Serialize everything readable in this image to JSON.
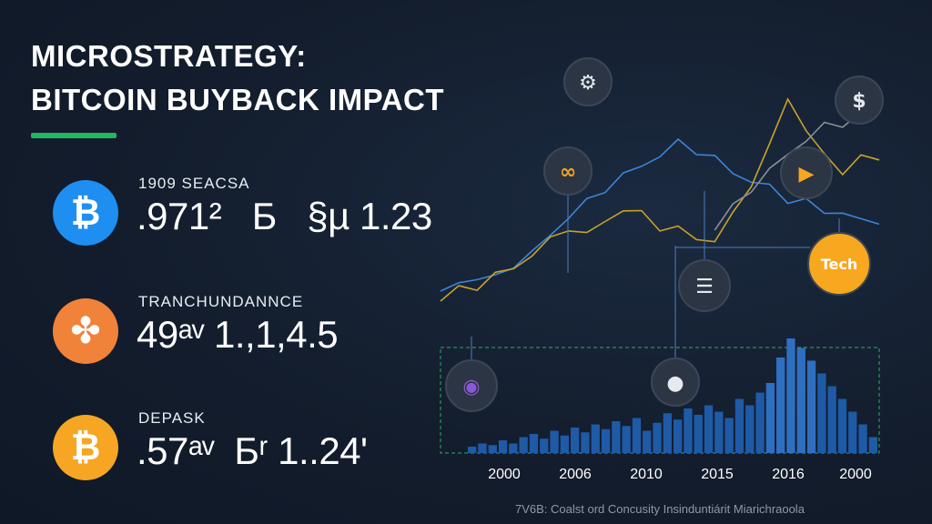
{
  "title": {
    "line1": "MICROSTRATEGY:",
    "line2": "BITCOIN BUYBACK IMPACT"
  },
  "accent_color": "#1fb860",
  "stats": [
    {
      "icon": "bitcoin-icon",
      "icon_glyph": "₿",
      "color": "#1f8ef1",
      "label": "1909 SEACSA",
      "value": ".971²   Б   §µ 1.23"
    },
    {
      "icon": "puzzle-icon",
      "icon_glyph": "✤",
      "color": "#f1823a",
      "label": "TRANCHUNDANNCE",
      "value": "49ᵃᵛ 1.,1,4.5"
    },
    {
      "icon": "bitcoin-icon",
      "icon_glyph": "₿",
      "color": "#f6a623",
      "label": "DEPASK",
      "value": ".57ᵃᵛ  Бʳ 1..24'"
    }
  ],
  "chart_data": {
    "type": "line",
    "x_ticks": [
      "2000",
      "2006",
      "2010",
      "2015",
      "2016",
      "2000"
    ],
    "series": [
      {
        "color": "#3b86d6",
        "values": [
          20,
          22,
          26,
          24,
          30,
          34,
          40,
          48,
          52,
          58,
          62,
          66,
          70,
          74,
          72,
          68,
          64,
          60,
          58,
          54,
          52,
          50,
          48,
          46,
          46
        ]
      },
      {
        "color": "#c9a229",
        "values": [
          18,
          20,
          22,
          26,
          28,
          34,
          38,
          44,
          40,
          46,
          50,
          48,
          44,
          42,
          40,
          38,
          48,
          60,
          72,
          92,
          78,
          70,
          64,
          68,
          70
        ]
      },
      {
        "color": "#8a8f96",
        "values": [
          null,
          null,
          null,
          null,
          null,
          null,
          null,
          null,
          null,
          null,
          null,
          null,
          null,
          null,
          null,
          44,
          50,
          58,
          64,
          70,
          76,
          80,
          82,
          84,
          86
        ]
      }
    ],
    "bars": [
      4,
      6,
      5,
      8,
      6,
      10,
      12,
      9,
      14,
      11,
      16,
      13,
      18,
      15,
      20,
      17,
      22,
      14,
      19,
      25,
      21,
      28,
      24,
      30,
      26,
      22,
      34,
      30,
      38,
      44,
      60,
      72,
      66,
      58,
      50,
      42,
      34,
      26,
      18,
      10
    ],
    "icons": [
      "robot-icon",
      "dollar-icon",
      "link-icon",
      "play-icon",
      "tech-badge",
      "bank-icon",
      "planet-icon",
      "eye-icon"
    ],
    "tech_badge_text": "Tech"
  },
  "footer": "7V6B: Coalst ord Concusity Insinduntiárit Miarichraoola"
}
